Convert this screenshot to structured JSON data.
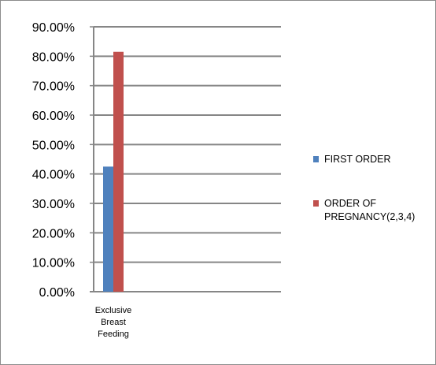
{
  "chart_data": {
    "type": "bar",
    "categories": [
      "Exclusive Breast Feeding"
    ],
    "category_lines": [
      [
        "Exclusive",
        "Breast",
        "Feeding"
      ]
    ],
    "series": [
      {
        "name": "FIRST ORDER",
        "legend_lines": [
          "FIRST ORDER"
        ],
        "values": [
          0.425
        ],
        "color": "#4f81bd"
      },
      {
        "name": "ORDER OF PREGNANCY(2,3,4)",
        "legend_lines": [
          "ORDER OF",
          "PREGNANCY(2,3,4)"
        ],
        "values": [
          0.815
        ],
        "color": "#c0504d"
      }
    ],
    "y_ticks": [
      "0.00%",
      "10.00%",
      "20.00%",
      "30.00%",
      "40.00%",
      "50.00%",
      "60.00%",
      "70.00%",
      "80.00%",
      "90.00%"
    ],
    "ylim": [
      0,
      0.9
    ],
    "grid": true,
    "legend_position": "right",
    "title": "",
    "xlabel": "",
    "ylabel": ""
  }
}
